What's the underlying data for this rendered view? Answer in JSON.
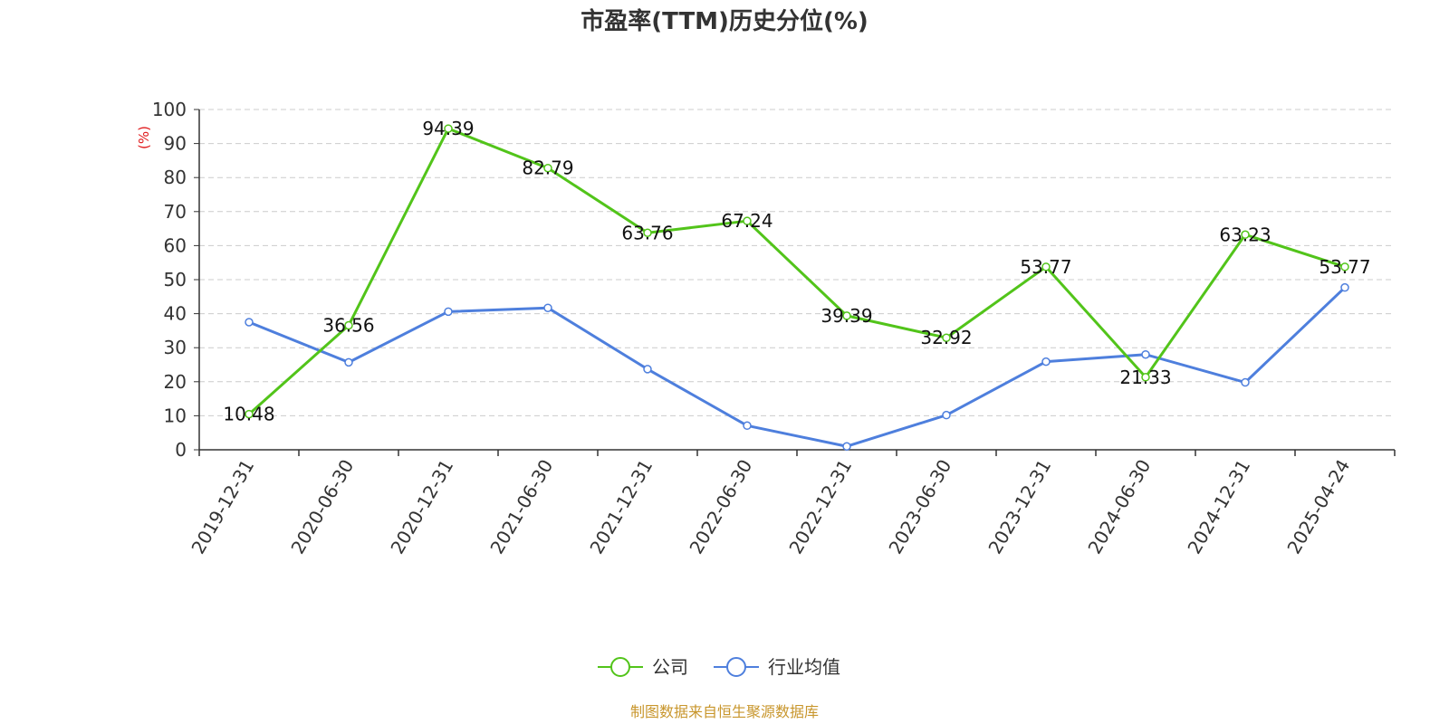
{
  "title": "市盈率(TTM)历史分位(%)",
  "source": "制图数据来自恒生聚源数据库",
  "colors": {
    "company": "#52c41a",
    "industry": "#4e7fdd",
    "unit": "#e0191b",
    "source": "#c8962c",
    "axis": "#333333",
    "grid": "#cccccc"
  },
  "chart_data": {
    "type": "line",
    "title": "市盈率(TTM)历史分位(%)",
    "ylabel": "(%)",
    "ylim": [
      0,
      100
    ],
    "yticks": [
      0,
      10,
      20,
      30,
      40,
      50,
      60,
      70,
      80,
      90,
      100
    ],
    "grid": true,
    "legend_position": "bottom-center",
    "categories": [
      "2019-12-31",
      "2020-06-30",
      "2020-12-31",
      "2021-06-30",
      "2021-12-31",
      "2022-06-30",
      "2022-12-31",
      "2023-06-30",
      "2023-12-31",
      "2024-06-30",
      "2024-12-31",
      "2025-04-24"
    ],
    "series": [
      {
        "name": "公司",
        "values": [
          10.48,
          36.56,
          94.39,
          82.79,
          63.76,
          67.24,
          39.39,
          32.92,
          53.77,
          21.33,
          63.23,
          53.77
        ],
        "labels": [
          "10.48",
          "36.56",
          "94.39",
          "82.79",
          "63.76",
          "67.24",
          "39.39",
          "32.92",
          "53.77",
          "21.33",
          "63.23",
          "53.77"
        ],
        "color": "#52c41a"
      },
      {
        "name": "行业均值",
        "values": [
          37.5,
          25.7,
          40.6,
          41.7,
          23.7,
          7.1,
          1.0,
          10.2,
          25.9,
          28.0,
          19.8,
          47.7
        ],
        "color": "#4e7fdd"
      }
    ]
  }
}
